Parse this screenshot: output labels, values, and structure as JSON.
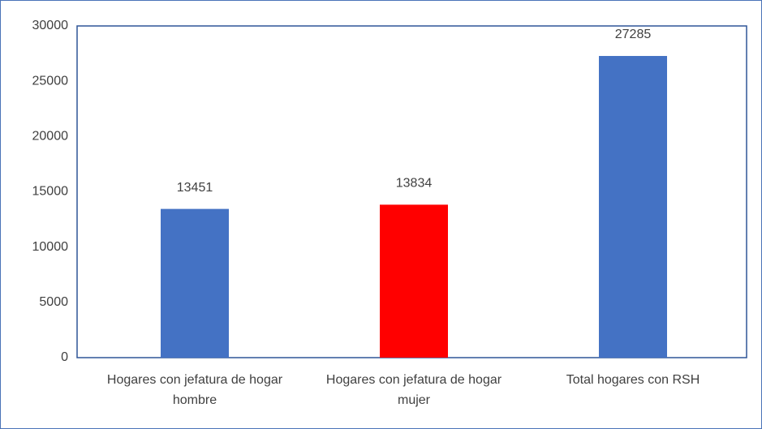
{
  "chart_data": {
    "type": "bar",
    "categories": [
      "Hogares con jefatura de hogar hombre",
      "Hogares con jefatura de hogar mujer",
      "Total hogares con RSH"
    ],
    "values": [
      13451,
      13834,
      27285
    ],
    "colors": [
      "#4472c4",
      "#ff0000",
      "#4472c4"
    ],
    "ylim": [
      0,
      30000
    ],
    "yticks": [
      0,
      5000,
      10000,
      15000,
      20000,
      25000,
      30000
    ],
    "grid": false
  }
}
